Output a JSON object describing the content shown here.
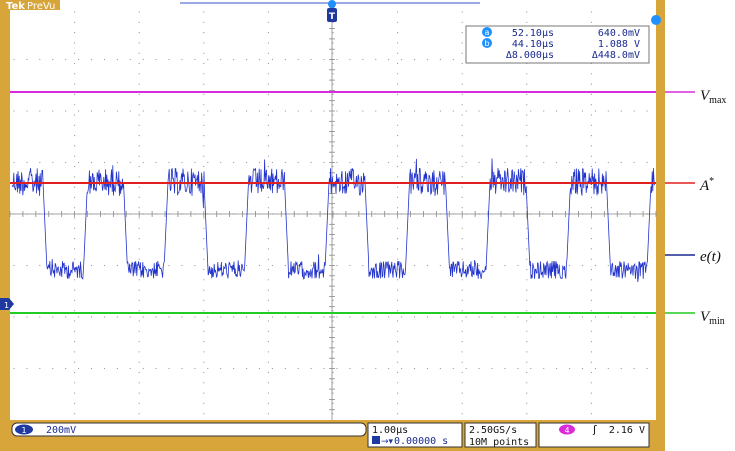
{
  "header": {
    "brand": "Tek",
    "mode": "PreVu",
    "trigger_marker": "T",
    "cursor_a_badge": "a",
    "cursor_b_badge": "b"
  },
  "readout": {
    "a_time": "52.10µs",
    "a_volt": "640.0mV",
    "b_time": "44.10µs",
    "b_volt": "1.088 V",
    "delta_time": "Δ8.000µs",
    "delta_volt": "Δ448.0mV"
  },
  "channel_marker": "1",
  "bottom": {
    "ch_num": "1",
    "ch_scale": "200mV",
    "timebase": "1.00µs",
    "position": "0.00000 s",
    "sample_rate": "2.50GS/s",
    "record_length": "10M points",
    "trig_ch": "4",
    "trig_slope": "ʃ",
    "trig_level": "2.16 V"
  },
  "legend": {
    "vmax_main": "V",
    "vmax_sub": "max",
    "astar_main": "A",
    "astar_sup": "*",
    "et": "e(t)",
    "vmin_main": "V",
    "vmin_sub": "min"
  },
  "colors": {
    "frame": "#d8a53a",
    "vmax": "#d92bd9",
    "astar": "#e02020",
    "signal": "#2233cc",
    "vmin": "#22cc22",
    "badge": "#1e90ff"
  }
}
